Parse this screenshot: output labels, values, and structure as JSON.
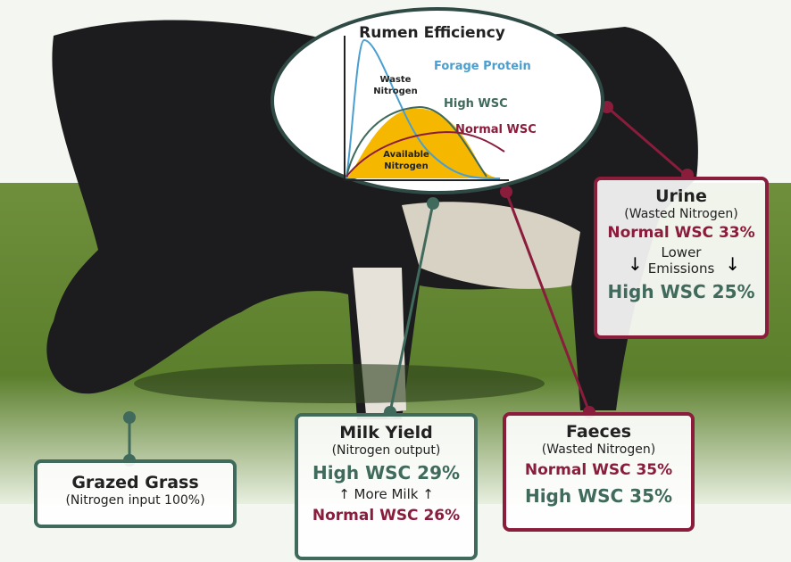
{
  "inset": {
    "title": "Rumen Efficiency",
    "waste_label": [
      "Waste",
      "Nitrogen"
    ],
    "forage_label": "Forage Protein",
    "high_label": "High WSC",
    "normal_label": "Normal WSC",
    "available_label": [
      "Available",
      "Nitrogen"
    ]
  },
  "urine": {
    "title": "Urine",
    "subtitle": "(Wasted Nitrogen)",
    "normal": "Normal WSC 33%",
    "note": [
      "Lower",
      "Emissions"
    ],
    "high": "High WSC 25%"
  },
  "milk": {
    "title": "Milk Yield",
    "subtitle": "(Nitrogen output)",
    "high": "High WSC 29%",
    "note": "More Milk",
    "normal": "Normal WSC 26%"
  },
  "faeces": {
    "title": "Faeces",
    "subtitle": "(Wasted Nitrogen)",
    "normal": "Normal WSC 35%",
    "high": "High WSC 35%"
  },
  "grass": {
    "title": "Grazed Grass",
    "subtitle": "(Nitrogen input 100%)"
  }
}
